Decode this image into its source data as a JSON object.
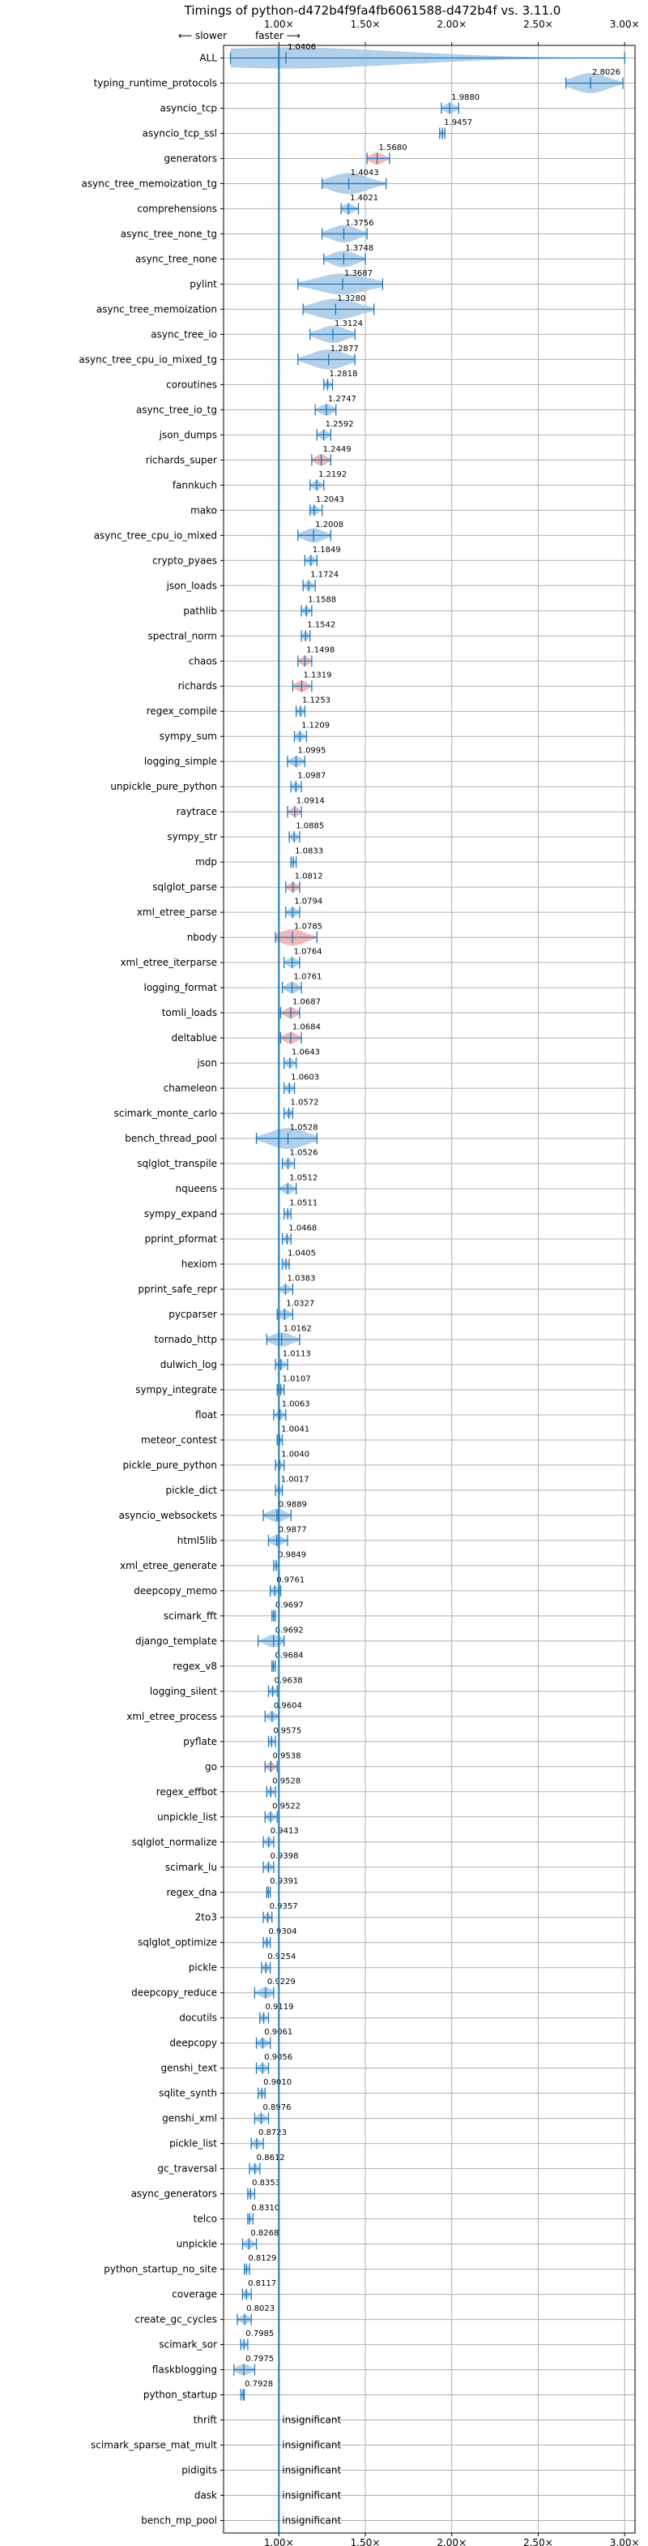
{
  "chart_data": {
    "type": "violin",
    "title": "Timings of python-d472b4f9fa4fb6061588-d472b4f vs. 3.11.0",
    "direction_labels": {
      "slower": "⟵ slower",
      "faster": "faster ⟶"
    },
    "x_ticks": [
      1.0,
      1.5,
      2.0,
      2.5,
      3.0
    ],
    "x_tick_labels": [
      "1.00×",
      "1.50×",
      "2.00×",
      "2.50×",
      "3.00×"
    ],
    "xlim": [
      0.68,
      3.06
    ],
    "reference_line": 1.0,
    "grid": true,
    "colors": {
      "faster": "#1f77b4",
      "slower": "#d62728",
      "violin_faster": "#a6c8e8",
      "violin_slower": "#f2a9aa"
    },
    "insignificant_text": "insignificant",
    "benchmarks": [
      {
        "name": "ALL",
        "value": 1.0406,
        "min": 0.72,
        "max": 3.0,
        "slower": false
      },
      {
        "name": "typing_runtime_protocols",
        "value": 2.8026,
        "min": 2.66,
        "max": 2.99,
        "slower": false
      },
      {
        "name": "asyncio_tcp",
        "value": 1.988,
        "min": 1.94,
        "max": 2.04,
        "slower": false
      },
      {
        "name": "asyncio_tcp_ssl",
        "value": 1.9457,
        "min": 1.93,
        "max": 1.96,
        "slower": false
      },
      {
        "name": "generators",
        "value": 1.568,
        "min": 1.51,
        "max": 1.64,
        "slower": true
      },
      {
        "name": "async_tree_memoization_tg",
        "value": 1.4043,
        "min": 1.25,
        "max": 1.62,
        "slower": false
      },
      {
        "name": "comprehensions",
        "value": 1.4021,
        "min": 1.36,
        "max": 1.46,
        "slower": false
      },
      {
        "name": "async_tree_none_tg",
        "value": 1.3756,
        "min": 1.25,
        "max": 1.51,
        "slower": false
      },
      {
        "name": "async_tree_none",
        "value": 1.3748,
        "min": 1.26,
        "max": 1.5,
        "slower": false
      },
      {
        "name": "pylint",
        "value": 1.3687,
        "min": 1.11,
        "max": 1.6,
        "slower": false
      },
      {
        "name": "async_tree_memoization",
        "value": 1.328,
        "min": 1.14,
        "max": 1.55,
        "slower": false
      },
      {
        "name": "async_tree_io",
        "value": 1.3124,
        "min": 1.18,
        "max": 1.44,
        "slower": false
      },
      {
        "name": "async_tree_cpu_io_mixed_tg",
        "value": 1.2877,
        "min": 1.11,
        "max": 1.44,
        "slower": false
      },
      {
        "name": "coroutines",
        "value": 1.2818,
        "min": 1.26,
        "max": 1.31,
        "slower": false
      },
      {
        "name": "async_tree_io_tg",
        "value": 1.2747,
        "min": 1.21,
        "max": 1.33,
        "slower": false
      },
      {
        "name": "json_dumps",
        "value": 1.2592,
        "min": 1.22,
        "max": 1.3,
        "slower": false
      },
      {
        "name": "richards_super",
        "value": 1.2449,
        "min": 1.19,
        "max": 1.3,
        "slower": true
      },
      {
        "name": "fannkuch",
        "value": 1.2192,
        "min": 1.18,
        "max": 1.26,
        "slower": false
      },
      {
        "name": "mako",
        "value": 1.2043,
        "min": 1.18,
        "max": 1.25,
        "slower": false
      },
      {
        "name": "async_tree_cpu_io_mixed",
        "value": 1.2008,
        "min": 1.11,
        "max": 1.3,
        "slower": false
      },
      {
        "name": "crypto_pyaes",
        "value": 1.1849,
        "min": 1.15,
        "max": 1.22,
        "slower": false
      },
      {
        "name": "json_loads",
        "value": 1.1724,
        "min": 1.14,
        "max": 1.21,
        "slower": false
      },
      {
        "name": "pathlib",
        "value": 1.1588,
        "min": 1.13,
        "max": 1.19,
        "slower": false
      },
      {
        "name": "spectral_norm",
        "value": 1.1542,
        "min": 1.13,
        "max": 1.18,
        "slower": false
      },
      {
        "name": "chaos",
        "value": 1.1498,
        "min": 1.11,
        "max": 1.19,
        "slower": true
      },
      {
        "name": "richards",
        "value": 1.1319,
        "min": 1.08,
        "max": 1.19,
        "slower": true
      },
      {
        "name": "regex_compile",
        "value": 1.1253,
        "min": 1.1,
        "max": 1.15,
        "slower": false
      },
      {
        "name": "sympy_sum",
        "value": 1.1209,
        "min": 1.09,
        "max": 1.16,
        "slower": false
      },
      {
        "name": "logging_simple",
        "value": 1.0995,
        "min": 1.05,
        "max": 1.15,
        "slower": false
      },
      {
        "name": "unpickle_pure_python",
        "value": 1.0987,
        "min": 1.07,
        "max": 1.13,
        "slower": false
      },
      {
        "name": "raytrace",
        "value": 1.0914,
        "min": 1.05,
        "max": 1.13,
        "slower": true
      },
      {
        "name": "sympy_str",
        "value": 1.0885,
        "min": 1.06,
        "max": 1.12,
        "slower": false
      },
      {
        "name": "mdp",
        "value": 1.0833,
        "min": 1.07,
        "max": 1.1,
        "slower": false
      },
      {
        "name": "sqlglot_parse",
        "value": 1.0812,
        "min": 1.04,
        "max": 1.12,
        "slower": true
      },
      {
        "name": "xml_etree_parse",
        "value": 1.0794,
        "min": 1.04,
        "max": 1.12,
        "slower": false
      },
      {
        "name": "nbody",
        "value": 1.0785,
        "min": 0.98,
        "max": 1.22,
        "slower": true
      },
      {
        "name": "xml_etree_iterparse",
        "value": 1.0764,
        "min": 1.03,
        "max": 1.12,
        "slower": false
      },
      {
        "name": "logging_format",
        "value": 1.0761,
        "min": 1.02,
        "max": 1.13,
        "slower": false
      },
      {
        "name": "tomli_loads",
        "value": 1.0687,
        "min": 1.01,
        "max": 1.12,
        "slower": true
      },
      {
        "name": "deltablue",
        "value": 1.0684,
        "min": 1.01,
        "max": 1.13,
        "slower": true
      },
      {
        "name": "json",
        "value": 1.0643,
        "min": 1.03,
        "max": 1.1,
        "slower": false
      },
      {
        "name": "chameleon",
        "value": 1.0603,
        "min": 1.03,
        "max": 1.09,
        "slower": false
      },
      {
        "name": "scimark_monte_carlo",
        "value": 1.0572,
        "min": 1.03,
        "max": 1.08,
        "slower": false
      },
      {
        "name": "bench_thread_pool",
        "value": 1.0528,
        "min": 0.87,
        "max": 1.22,
        "slower": false
      },
      {
        "name": "sqlglot_transpile",
        "value": 1.0526,
        "min": 1.02,
        "max": 1.09,
        "slower": false
      },
      {
        "name": "nqueens",
        "value": 1.0512,
        "min": 1.0,
        "max": 1.1,
        "slower": false
      },
      {
        "name": "sympy_expand",
        "value": 1.0511,
        "min": 1.03,
        "max": 1.07,
        "slower": false
      },
      {
        "name": "pprint_pformat",
        "value": 1.0468,
        "min": 1.02,
        "max": 1.07,
        "slower": false
      },
      {
        "name": "hexiom",
        "value": 1.0405,
        "min": 1.02,
        "max": 1.06,
        "slower": false
      },
      {
        "name": "pprint_safe_repr",
        "value": 1.0383,
        "min": 1.0,
        "max": 1.08,
        "slower": false
      },
      {
        "name": "pycparser",
        "value": 1.0327,
        "min": 0.99,
        "max": 1.08,
        "slower": false
      },
      {
        "name": "tornado_http",
        "value": 1.0162,
        "min": 0.93,
        "max": 1.12,
        "slower": false
      },
      {
        "name": "dulwich_log",
        "value": 1.0113,
        "min": 0.98,
        "max": 1.05,
        "slower": false
      },
      {
        "name": "sympy_integrate",
        "value": 1.0107,
        "min": 0.99,
        "max": 1.03,
        "slower": false
      },
      {
        "name": "float",
        "value": 1.0063,
        "min": 0.97,
        "max": 1.04,
        "slower": false
      },
      {
        "name": "meteor_contest",
        "value": 1.0041,
        "min": 0.99,
        "max": 1.02,
        "slower": false
      },
      {
        "name": "pickle_pure_python",
        "value": 1.004,
        "min": 0.98,
        "max": 1.03,
        "slower": false
      },
      {
        "name": "pickle_dict",
        "value": 1.0017,
        "min": 0.98,
        "max": 1.02,
        "slower": false
      },
      {
        "name": "asyncio_websockets",
        "value": 0.9889,
        "min": 0.91,
        "max": 1.07,
        "slower": false
      },
      {
        "name": "html5lib",
        "value": 0.9877,
        "min": 0.94,
        "max": 1.05,
        "slower": false
      },
      {
        "name": "xml_etree_generate",
        "value": 0.9849,
        "min": 0.97,
        "max": 1.0,
        "slower": false
      },
      {
        "name": "deepcopy_memo",
        "value": 0.9761,
        "min": 0.95,
        "max": 1.01,
        "slower": false
      },
      {
        "name": "scimark_fft",
        "value": 0.9697,
        "min": 0.96,
        "max": 0.98,
        "slower": false
      },
      {
        "name": "django_template",
        "value": 0.9692,
        "min": 0.88,
        "max": 1.03,
        "slower": false
      },
      {
        "name": "regex_v8",
        "value": 0.9684,
        "min": 0.96,
        "max": 0.98,
        "slower": false
      },
      {
        "name": "logging_silent",
        "value": 0.9638,
        "min": 0.94,
        "max": 0.99,
        "slower": false
      },
      {
        "name": "xml_etree_process",
        "value": 0.9604,
        "min": 0.92,
        "max": 1.0,
        "slower": false
      },
      {
        "name": "pyflate",
        "value": 0.9575,
        "min": 0.94,
        "max": 0.98,
        "slower": false
      },
      {
        "name": "go",
        "value": 0.9538,
        "min": 0.92,
        "max": 0.99,
        "slower": true
      },
      {
        "name": "regex_effbot",
        "value": 0.9528,
        "min": 0.93,
        "max": 0.98,
        "slower": false
      },
      {
        "name": "unpickle_list",
        "value": 0.9522,
        "min": 0.92,
        "max": 0.99,
        "slower": false
      },
      {
        "name": "sqlglot_normalize",
        "value": 0.9413,
        "min": 0.91,
        "max": 0.97,
        "slower": false
      },
      {
        "name": "scimark_lu",
        "value": 0.9398,
        "min": 0.91,
        "max": 0.97,
        "slower": false
      },
      {
        "name": "regex_dna",
        "value": 0.9391,
        "min": 0.93,
        "max": 0.95,
        "slower": false
      },
      {
        "name": "2to3",
        "value": 0.9357,
        "min": 0.91,
        "max": 0.96,
        "slower": false
      },
      {
        "name": "sqlglot_optimize",
        "value": 0.9304,
        "min": 0.91,
        "max": 0.95,
        "slower": false
      },
      {
        "name": "pickle",
        "value": 0.9254,
        "min": 0.9,
        "max": 0.95,
        "slower": false
      },
      {
        "name": "deepcopy_reduce",
        "value": 0.9229,
        "min": 0.86,
        "max": 0.97,
        "slower": false
      },
      {
        "name": "docutils",
        "value": 0.9119,
        "min": 0.89,
        "max": 0.94,
        "slower": false
      },
      {
        "name": "deepcopy",
        "value": 0.9061,
        "min": 0.87,
        "max": 0.95,
        "slower": false
      },
      {
        "name": "genshi_text",
        "value": 0.9056,
        "min": 0.87,
        "max": 0.94,
        "slower": false
      },
      {
        "name": "sqlite_synth",
        "value": 0.901,
        "min": 0.88,
        "max": 0.92,
        "slower": false
      },
      {
        "name": "genshi_xml",
        "value": 0.8976,
        "min": 0.86,
        "max": 0.94,
        "slower": false
      },
      {
        "name": "pickle_list",
        "value": 0.8723,
        "min": 0.84,
        "max": 0.91,
        "slower": false
      },
      {
        "name": "gc_traversal",
        "value": 0.8612,
        "min": 0.83,
        "max": 0.89,
        "slower": false
      },
      {
        "name": "async_generators",
        "value": 0.8353,
        "min": 0.82,
        "max": 0.86,
        "slower": false
      },
      {
        "name": "telco",
        "value": 0.831,
        "min": 0.82,
        "max": 0.85,
        "slower": false
      },
      {
        "name": "unpickle",
        "value": 0.8268,
        "min": 0.79,
        "max": 0.87,
        "slower": false
      },
      {
        "name": "python_startup_no_site",
        "value": 0.8129,
        "min": 0.8,
        "max": 0.83,
        "slower": false
      },
      {
        "name": "coverage",
        "value": 0.8117,
        "min": 0.79,
        "max": 0.84,
        "slower": false
      },
      {
        "name": "create_gc_cycles",
        "value": 0.8023,
        "min": 0.76,
        "max": 0.84,
        "slower": false
      },
      {
        "name": "scimark_sor",
        "value": 0.7985,
        "min": 0.78,
        "max": 0.82,
        "slower": false
      },
      {
        "name": "flaskblogging",
        "value": 0.7975,
        "min": 0.74,
        "max": 0.86,
        "slower": false
      },
      {
        "name": "python_startup",
        "value": 0.7928,
        "min": 0.78,
        "max": 0.8,
        "slower": false
      },
      {
        "name": "thrift",
        "insignificant": true
      },
      {
        "name": "scimark_sparse_mat_mult",
        "insignificant": true
      },
      {
        "name": "pidigits",
        "insignificant": true
      },
      {
        "name": "dask",
        "insignificant": true
      },
      {
        "name": "bench_mp_pool",
        "insignificant": true
      }
    ]
  }
}
